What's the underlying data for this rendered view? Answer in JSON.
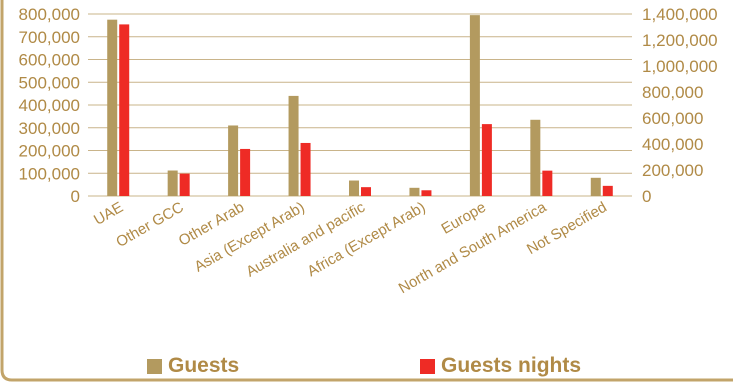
{
  "chart_data": {
    "type": "bar",
    "categories": [
      "UAE",
      "Other GCC",
      "Other Arab",
      "Asia (Except Arab)",
      "Australia and pacific",
      "Africa (Except Arab)",
      "Europe",
      "North and South America",
      "Not Specified"
    ],
    "series": [
      {
        "name": "Guests",
        "axis": "left",
        "color": "#b39a5f",
        "values": [
          775000,
          112000,
          310000,
          440000,
          68000,
          36000,
          795000,
          335000,
          80000
        ]
      },
      {
        "name": "Guests nights",
        "axis": "right",
        "color": "#ee2b25",
        "values": [
          1320000,
          172000,
          362000,
          408000,
          68000,
          44000,
          553000,
          195000,
          78000
        ]
      }
    ],
    "left_axis": {
      "ylim": [
        0,
        800000
      ],
      "ticks": [
        "0",
        "100,000",
        "200,000",
        "300,000",
        "400,000",
        "500,000",
        "600,000",
        "700,000",
        "800,000"
      ]
    },
    "right_axis": {
      "ylim": [
        0,
        1400000
      ],
      "ticks": [
        "0",
        "200,000",
        "400,000",
        "600,000",
        "800,000",
        "1,000,000",
        "1,200,000",
        "1,400,000"
      ]
    },
    "grid": true,
    "legend_position": "bottom"
  },
  "legend": {
    "guests": "Guests",
    "guests_nights": "Guests nights"
  },
  "colors": {
    "text": "#b08a46",
    "frame": "#c2a46a",
    "grid": "#c9b48a"
  }
}
